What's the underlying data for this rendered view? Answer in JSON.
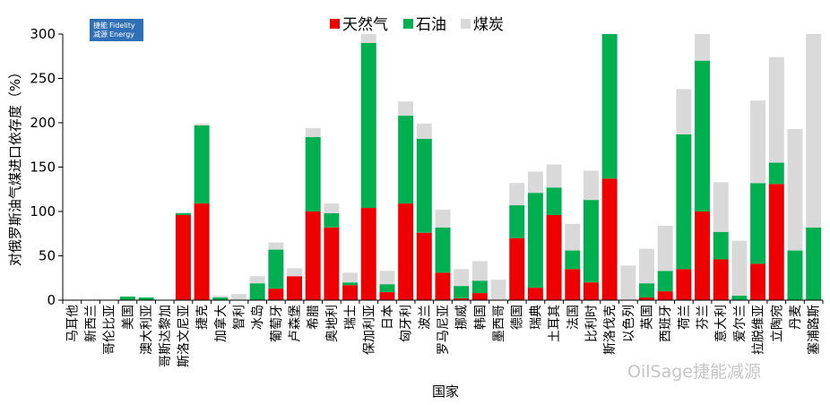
{
  "logo": {
    "cn_line1": "捷能",
    "cn_line2": "减源",
    "en_line1": "Fidelity",
    "en_line2": "Energy"
  },
  "watermark": "OilSage捷能减源",
  "colors": {
    "gas": "#ee0000",
    "oil": "#00b050",
    "coal": "#d9d9d9"
  },
  "chart_data": {
    "type": "bar",
    "stacked": true,
    "xlabel": "国家",
    "ylabel": "对俄罗斯油气煤进口依存度（%）",
    "ylim": [
      0,
      300
    ],
    "yticks": [
      0,
      50,
      100,
      150,
      200,
      250,
      300
    ],
    "legend_position": "top-center",
    "categories": [
      "马耳他",
      "新西兰",
      "哥伦比亚",
      "美国",
      "澳大利亚",
      "哥斯达黎加",
      "斯洛文尼亚",
      "捷克",
      "加拿大",
      "智利",
      "冰岛",
      "葡萄牙",
      "卢森堡",
      "希腊",
      "奥地利",
      "瑞士",
      "保加利亚",
      "日本",
      "匈牙利",
      "波兰",
      "罗马尼亚",
      "挪威",
      "韩国",
      "墨西哥",
      "德国",
      "瑞典",
      "土耳其",
      "法国",
      "比利时",
      "斯洛伐克",
      "以色列",
      "英国",
      "西班牙",
      "荷兰",
      "芬兰",
      "意大利",
      "爱尔兰",
      "拉脱维亚",
      "立陶宛",
      "丹麦",
      "塞浦路斯"
    ],
    "series": [
      {
        "name": "天然气",
        "values": [
          0,
          0,
          0,
          0,
          0,
          0,
          96,
          109,
          0,
          0,
          0,
          13,
          27,
          100,
          82,
          17,
          104,
          9,
          109,
          76,
          31,
          2,
          8,
          0,
          70,
          14,
          96,
          35,
          20,
          137,
          0,
          3,
          10,
          35,
          100,
          46,
          0,
          41,
          131,
          0,
          0
        ]
      },
      {
        "name": "石油",
        "values": [
          0,
          0,
          0,
          4,
          3,
          0,
          2,
          88,
          3,
          0,
          19,
          44,
          0,
          84,
          16,
          3,
          186,
          9,
          99,
          106,
          51,
          14,
          14,
          0,
          37,
          107,
          31,
          21,
          93,
          163,
          0,
          16,
          23,
          152,
          170,
          31,
          5,
          91,
          24,
          56,
          82
        ]
      },
      {
        "name": "煤炭",
        "values": [
          0,
          0,
          0,
          0,
          0,
          0,
          1,
          2,
          2,
          7,
          8,
          8,
          9,
          10,
          11,
          11,
          10,
          15,
          16,
          17,
          20,
          19,
          22,
          23,
          25,
          24,
          26,
          30,
          33,
          25,
          39,
          39,
          51,
          51,
          55,
          56,
          62,
          93,
          119,
          137,
          220
        ]
      }
    ]
  }
}
